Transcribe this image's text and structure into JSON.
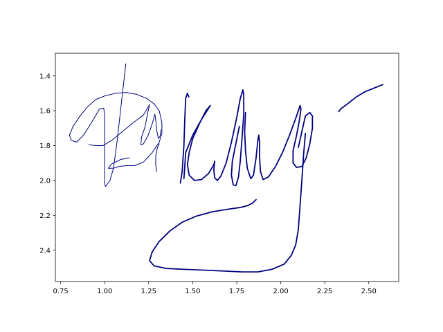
{
  "chart_data": {
    "type": "line",
    "title": "",
    "xlabel": "",
    "ylabel": "",
    "xlim": [
      0.72,
      2.67
    ],
    "ylim": [
      2.58,
      1.27
    ],
    "y_inverted": true,
    "grid": false,
    "legend": "none",
    "line_color": "#00007f",
    "x_ticks": [
      0.75,
      1.0,
      1.25,
      1.5,
      1.75,
      2.0,
      2.25,
      2.5
    ],
    "x_tick_labels": [
      "0.75",
      "1.00",
      "1.25",
      "1.50",
      "1.75",
      "2.00",
      "2.25",
      "2.50"
    ],
    "y_ticks": [
      1.4,
      1.6,
      1.8,
      2.0,
      2.2,
      2.4
    ],
    "y_tick_labels": [
      "1.4",
      "1.6",
      "1.8",
      "2.0",
      "2.2",
      "2.4"
    ],
    "series": [
      {
        "width": 1.0,
        "points": [
          [
            1.12,
            1.33
          ],
          [
            1.11,
            1.42
          ],
          [
            1.09,
            1.6
          ],
          [
            1.07,
            1.78
          ],
          [
            1.05,
            1.93
          ],
          [
            1.03,
            2.0
          ],
          [
            1.005,
            2.035
          ],
          [
            1.0,
            2.02
          ],
          [
            1.0,
            1.92
          ],
          [
            1.0,
            1.78
          ],
          [
            1.0,
            1.64
          ],
          [
            0.995,
            1.585
          ],
          [
            0.97,
            1.59
          ],
          [
            0.93,
            1.66
          ],
          [
            0.88,
            1.74
          ],
          [
            0.84,
            1.78
          ],
          [
            0.81,
            1.77
          ],
          [
            0.8,
            1.74
          ],
          [
            0.82,
            1.69
          ],
          [
            0.86,
            1.63
          ],
          [
            0.9,
            1.58
          ],
          [
            0.95,
            1.535
          ],
          [
            1.0,
            1.515
          ],
          [
            1.06,
            1.5
          ],
          [
            1.12,
            1.495
          ],
          [
            1.18,
            1.505
          ],
          [
            1.24,
            1.53
          ],
          [
            1.28,
            1.56
          ],
          [
            1.31,
            1.6
          ],
          [
            1.325,
            1.67
          ],
          [
            1.325,
            1.73
          ],
          [
            1.31,
            1.78
          ],
          [
            1.27,
            1.84
          ],
          [
            1.22,
            1.895
          ],
          [
            1.17,
            1.915
          ],
          [
            1.12,
            1.915
          ],
          [
            1.08,
            1.92
          ],
          [
            1.05,
            1.93
          ],
          [
            1.02,
            1.93
          ],
          [
            1.04,
            1.905
          ],
          [
            1.09,
            1.88
          ],
          [
            1.14,
            1.87
          ]
        ]
      },
      {
        "width": 1.0,
        "points": [
          [
            0.91,
            1.795
          ],
          [
            0.95,
            1.8
          ],
          [
            0.99,
            1.8
          ],
          [
            1.04,
            1.77
          ],
          [
            1.1,
            1.72
          ],
          [
            1.16,
            1.67
          ],
          [
            1.22,
            1.625
          ],
          [
            1.255,
            1.565
          ]
        ]
      },
      {
        "width": 1.0,
        "points": [
          [
            1.255,
            1.565
          ],
          [
            1.245,
            1.61
          ],
          [
            1.23,
            1.69
          ],
          [
            1.21,
            1.75
          ],
          [
            1.205,
            1.795
          ],
          [
            1.22,
            1.79
          ],
          [
            1.245,
            1.745
          ],
          [
            1.265,
            1.69
          ],
          [
            1.28,
            1.64
          ],
          [
            1.285,
            1.62
          ],
          [
            1.29,
            1.65
          ],
          [
            1.295,
            1.71
          ],
          [
            1.305,
            1.76
          ],
          [
            1.315,
            1.745
          ],
          [
            1.32,
            1.71
          ]
        ]
      },
      {
        "width": 1.0,
        "points": [
          [
            1.31,
            1.79
          ],
          [
            1.3,
            1.81
          ],
          [
            1.29,
            1.86
          ],
          [
            1.29,
            1.91
          ],
          [
            1.295,
            1.95
          ]
        ]
      },
      {
        "width": 1.8,
        "points": [
          [
            1.43,
            2.015
          ],
          [
            1.44,
            1.95
          ],
          [
            1.45,
            1.8
          ],
          [
            1.455,
            1.65
          ],
          [
            1.46,
            1.53
          ],
          [
            1.47,
            1.5
          ],
          [
            1.478,
            1.52
          ]
        ]
      },
      {
        "width": 1.8,
        "points": [
          [
            1.45,
            1.99
          ],
          [
            1.455,
            1.92
          ],
          [
            1.46,
            1.84
          ],
          [
            1.5,
            1.74
          ],
          [
            1.55,
            1.65
          ],
          [
            1.6,
            1.57
          ],
          [
            1.575,
            1.6
          ],
          [
            1.54,
            1.67
          ],
          [
            1.5,
            1.76
          ],
          [
            1.48,
            1.84
          ],
          [
            1.47,
            1.91
          ],
          [
            1.48,
            1.97
          ],
          [
            1.51,
            2.0
          ],
          [
            1.55,
            1.995
          ],
          [
            1.59,
            1.96
          ],
          [
            1.62,
            1.91
          ],
          [
            1.625,
            1.89
          ]
        ]
      },
      {
        "width": 1.8,
        "points": [
          [
            1.625,
            1.89
          ],
          [
            1.62,
            1.94
          ],
          [
            1.625,
            1.985
          ],
          [
            1.64,
            2.0
          ],
          [
            1.66,
            1.975
          ],
          [
            1.69,
            1.9
          ],
          [
            1.72,
            1.78
          ],
          [
            1.75,
            1.64
          ],
          [
            1.77,
            1.53
          ],
          [
            1.785,
            1.48
          ],
          [
            1.79,
            1.51
          ],
          [
            1.79,
            1.62
          ],
          [
            1.78,
            1.76
          ],
          [
            1.77,
            1.89
          ],
          [
            1.76,
            1.98
          ],
          [
            1.745,
            2.03
          ],
          [
            1.73,
            2.025
          ],
          [
            1.72,
            1.97
          ],
          [
            1.725,
            1.89
          ],
          [
            1.745,
            1.79
          ],
          [
            1.765,
            1.69
          ]
        ]
      },
      {
        "width": 1.8,
        "points": [
          [
            1.8,
            1.61
          ],
          [
            1.795,
            1.72
          ],
          [
            1.8,
            1.83
          ],
          [
            1.81,
            1.93
          ],
          [
            1.83,
            1.99
          ],
          [
            1.845,
            1.97
          ],
          [
            1.86,
            1.87
          ],
          [
            1.87,
            1.77
          ],
          [
            1.875,
            1.74
          ],
          [
            1.88,
            1.78
          ],
          [
            1.88,
            1.87
          ],
          [
            1.885,
            1.95
          ],
          [
            1.9,
            1.995
          ],
          [
            1.93,
            1.98
          ],
          [
            1.97,
            1.92
          ],
          [
            2.01,
            1.84
          ],
          [
            2.05,
            1.74
          ],
          [
            2.09,
            1.63
          ],
          [
            2.11,
            1.57
          ],
          [
            2.115,
            1.59
          ],
          [
            2.105,
            1.66
          ],
          [
            2.09,
            1.74
          ],
          [
            2.07,
            1.83
          ],
          [
            2.07,
            1.9
          ],
          [
            2.09,
            1.925
          ],
          [
            2.12,
            1.92
          ],
          [
            2.145,
            1.87
          ],
          [
            2.165,
            1.79
          ],
          [
            2.18,
            1.7
          ],
          [
            2.18,
            1.63
          ],
          [
            2.165,
            1.61
          ],
          [
            2.14,
            1.63
          ],
          [
            2.12,
            1.72
          ],
          [
            2.1,
            1.81
          ]
        ]
      },
      {
        "width": 1.8,
        "points": [
          [
            2.14,
            1.73
          ],
          [
            2.13,
            1.85
          ],
          [
            2.12,
            2.0
          ],
          [
            2.11,
            2.14
          ],
          [
            2.1,
            2.28
          ],
          [
            2.085,
            2.37
          ],
          [
            2.06,
            2.43
          ],
          [
            2.02,
            2.48
          ],
          [
            1.95,
            2.51
          ],
          [
            1.87,
            2.525
          ],
          [
            1.78,
            2.525
          ],
          [
            1.68,
            2.52
          ],
          [
            1.57,
            2.515
          ],
          [
            1.45,
            2.51
          ],
          [
            1.35,
            2.505
          ],
          [
            1.28,
            2.49
          ],
          [
            1.255,
            2.46
          ],
          [
            1.27,
            2.41
          ],
          [
            1.31,
            2.35
          ],
          [
            1.37,
            2.29
          ],
          [
            1.44,
            2.24
          ],
          [
            1.52,
            2.205
          ],
          [
            1.61,
            2.18
          ],
          [
            1.7,
            2.165
          ],
          [
            1.77,
            2.155
          ],
          [
            1.81,
            2.145
          ],
          [
            1.84,
            2.13
          ],
          [
            1.86,
            2.11
          ]
        ]
      },
      {
        "width": 1.8,
        "points": [
          [
            2.33,
            1.605
          ],
          [
            2.34,
            1.59
          ],
          [
            2.38,
            1.56
          ],
          [
            2.43,
            1.52
          ],
          [
            2.48,
            1.49
          ],
          [
            2.53,
            1.47
          ],
          [
            2.58,
            1.45
          ]
        ]
      }
    ]
  }
}
